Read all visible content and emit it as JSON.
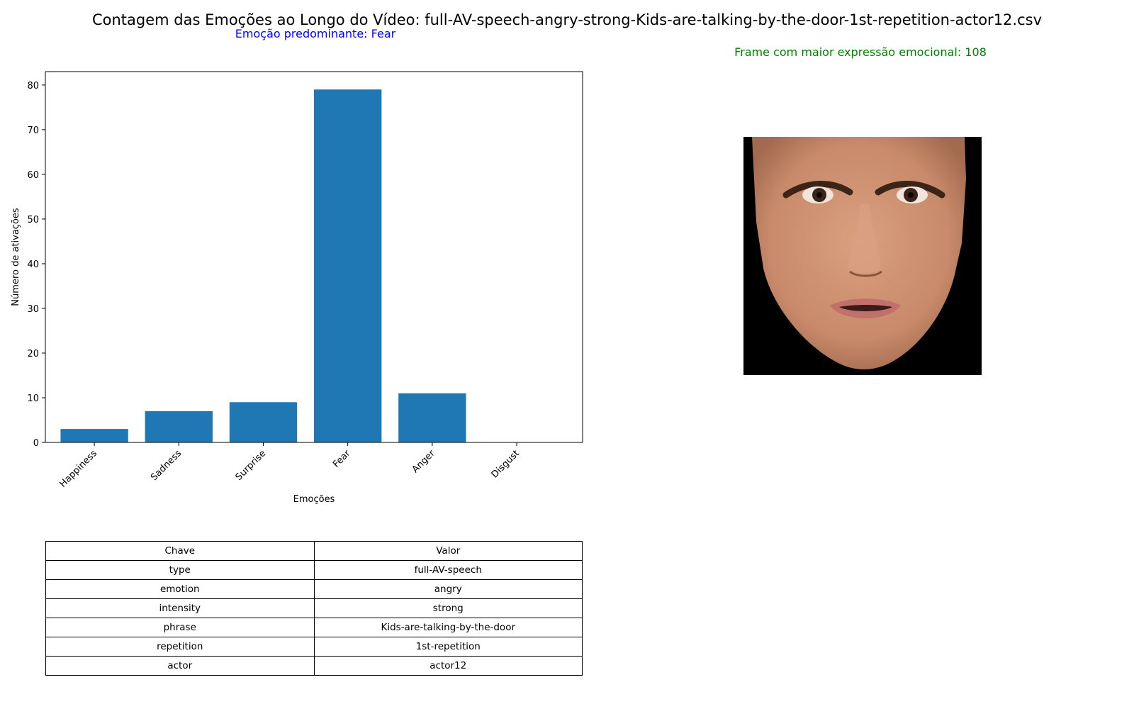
{
  "title": "Contagem das Emoções ao Longo do Vídeo: full-AV-speech-angry-strong-Kids-are-talking-by-the-door-1st-repetition-actor12.csv",
  "predominant_emotion": "Emoção predominante: Fear",
  "peak_frame": "Frame com maior expressão emocional: 108",
  "colors": {
    "bar": "#1f77b4",
    "predominant_text": "#0000ff",
    "frame_text": "#008000"
  },
  "image": {
    "icon": "face-photo",
    "background": "#000000"
  },
  "chart_data": {
    "type": "bar",
    "categories": [
      "Happiness",
      "Sadness",
      "Surprise",
      "Fear",
      "Anger",
      "Disgust"
    ],
    "values": [
      3,
      7,
      9,
      79,
      11,
      0
    ],
    "xlabel": "Emoções",
    "ylabel": "Número de ativações",
    "ylim": [
      0,
      83
    ],
    "yticks": [
      0,
      10,
      20,
      30,
      40,
      50,
      60,
      70,
      80
    ],
    "grid": false,
    "legend": "none"
  },
  "table": {
    "headers": [
      "Chave",
      "Valor"
    ],
    "rows": [
      [
        "type",
        "full-AV-speech"
      ],
      [
        "emotion",
        "angry"
      ],
      [
        "intensity",
        "strong"
      ],
      [
        "phrase",
        "Kids-are-talking-by-the-door"
      ],
      [
        "repetition",
        "1st-repetition"
      ],
      [
        "actor",
        "actor12"
      ]
    ]
  }
}
